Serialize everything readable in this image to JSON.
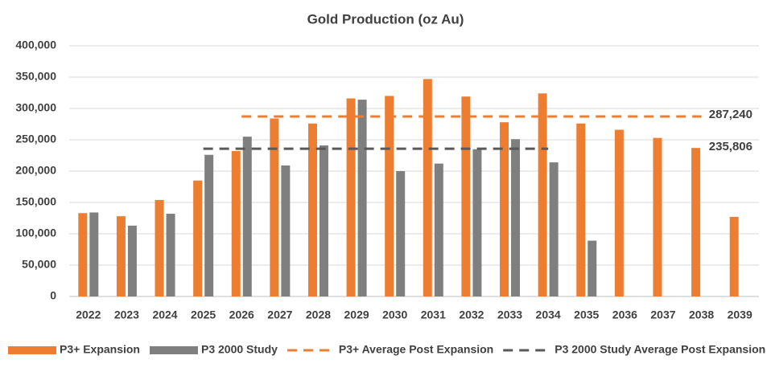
{
  "chart_data": {
    "type": "bar",
    "title": "Gold Production (oz Au)",
    "categories": [
      "2022",
      "2023",
      "2024",
      "2025",
      "2026",
      "2027",
      "2028",
      "2029",
      "2030",
      "2031",
      "2032",
      "2033",
      "2034",
      "2035",
      "2036",
      "2037",
      "2038",
      "2039"
    ],
    "series": [
      {
        "name": "P3+ Expansion",
        "type": "bar",
        "color": "#ed7d31",
        "values": [
          133000,
          128000,
          154000,
          185000,
          232000,
          284000,
          276000,
          316000,
          320000,
          347000,
          319000,
          278000,
          324000,
          276000,
          266000,
          253000,
          237000,
          127000
        ]
      },
      {
        "name": "P3 2000 Study",
        "type": "bar",
        "color": "#7f7f7f",
        "values": [
          134000,
          113000,
          132000,
          226000,
          255000,
          209000,
          241000,
          314000,
          200000,
          212000,
          235000,
          251000,
          214000,
          89000,
          null,
          null,
          null,
          null
        ]
      },
      {
        "name": "P3+ Average Post Expansion",
        "type": "line",
        "dashed": true,
        "color": "#ed7d31",
        "values": [
          null,
          null,
          null,
          null,
          287240,
          287240,
          287240,
          287240,
          287240,
          287240,
          287240,
          287240,
          287240,
          287240,
          287240,
          287240,
          287240,
          null
        ],
        "value_labels": [
          null,
          null,
          null,
          null,
          null,
          null,
          null,
          null,
          null,
          null,
          null,
          null,
          null,
          null,
          null,
          null,
          "287,240",
          null
        ]
      },
      {
        "name": "P3 2000 Study Average Post Expansion",
        "type": "line",
        "dashed": true,
        "color": "#595959",
        "values": [
          null,
          null,
          null,
          235806,
          235806,
          235806,
          235806,
          235806,
          235806,
          235806,
          235806,
          235806,
          235806,
          null,
          null,
          null,
          null,
          null
        ],
        "value_labels": [
          null,
          null,
          null,
          null,
          null,
          null,
          null,
          null,
          null,
          null,
          null,
          null,
          "235,806",
          null,
          null,
          null,
          null,
          null
        ]
      }
    ],
    "ylim": [
      0,
      400000
    ],
    "yticks": [
      0,
      {
        "value": 50000,
        "label": "50,000"
      },
      {
        "value": 100000,
        "label": "100,000"
      },
      {
        "value": 150000,
        "label": "150,000"
      },
      {
        "value": 200000,
        "label": "200,000"
      },
      {
        "value": 250000,
        "label": "250,000"
      },
      {
        "value": 300000,
        "label": "300,000"
      },
      {
        "value": 350000,
        "label": "350,000"
      },
      {
        "value": 400000,
        "label": "400,000"
      }
    ],
    "grid": true,
    "legend": "bottom"
  }
}
